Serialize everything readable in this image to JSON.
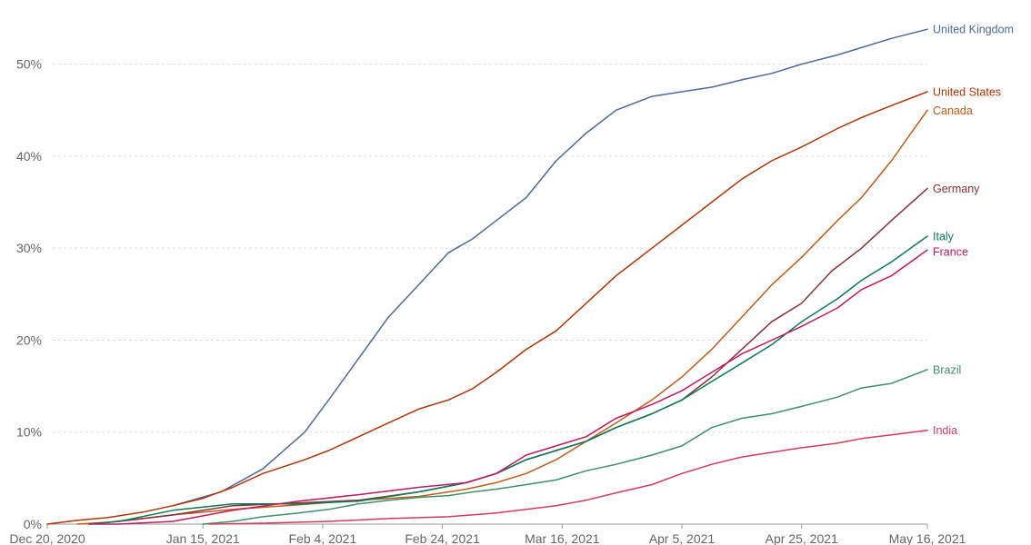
{
  "chart_data": {
    "type": "line",
    "title": "",
    "xlabel": "",
    "ylabel": "",
    "x_range": [
      "2020-12-20",
      "2021-05-16"
    ],
    "ylim": [
      0,
      55
    ],
    "grid": true,
    "legend": "inline labels at right end of lines",
    "x_ticks": [
      "Dec 20, 2020",
      "Jan 15, 2021",
      "Feb 4, 2021",
      "Feb 24, 2021",
      "Mar 16, 2021",
      "Apr 5, 2021",
      "Apr 25, 2021",
      "May 16, 2021"
    ],
    "x_tick_dates": [
      "2020-12-20",
      "2021-01-15",
      "2021-02-04",
      "2021-02-24",
      "2021-03-16",
      "2021-04-05",
      "2021-04-25",
      "2021-05-16"
    ],
    "y_ticks": [
      0,
      10,
      20,
      30,
      40,
      50
    ],
    "y_tick_labels": [
      "0%",
      "10%",
      "20%",
      "30%",
      "40%",
      "50%"
    ],
    "series": [
      {
        "name": "United Kingdom",
        "color": "#4c6a9c",
        "x": [
          "2021-01-10",
          "2021-01-18",
          "2021-01-25",
          "2021-02-01",
          "2021-02-05",
          "2021-02-10",
          "2021-02-15",
          "2021-02-20",
          "2021-02-25",
          "2021-03-01",
          "2021-03-05",
          "2021-03-10",
          "2021-03-15",
          "2021-03-20",
          "2021-03-25",
          "2021-03-31",
          "2021-04-05",
          "2021-04-10",
          "2021-04-15",
          "2021-04-20",
          "2021-04-25",
          "2021-05-01",
          "2021-05-05",
          "2021-05-10",
          "2021-05-16"
        ],
        "y": [
          2.0,
          3.5,
          6.0,
          10.0,
          13.5,
          18.0,
          22.5,
          26.0,
          29.5,
          31.0,
          33.0,
          35.5,
          39.5,
          42.5,
          45.0,
          46.5,
          47.0,
          47.5,
          48.3,
          49.0,
          50.0,
          51.0,
          51.8,
          52.8,
          53.8
        ]
      },
      {
        "name": "United States",
        "color": "#b13507",
        "x": [
          "2020-12-20",
          "2020-12-25",
          "2020-12-30",
          "2021-01-05",
          "2021-01-10",
          "2021-01-15",
          "2021-01-20",
          "2021-01-25",
          "2021-02-01",
          "2021-02-05",
          "2021-02-10",
          "2021-02-15",
          "2021-02-20",
          "2021-02-25",
          "2021-03-01",
          "2021-03-05",
          "2021-03-10",
          "2021-03-15",
          "2021-03-20",
          "2021-03-25",
          "2021-03-31",
          "2021-04-05",
          "2021-04-10",
          "2021-04-15",
          "2021-04-20",
          "2021-04-25",
          "2021-05-01",
          "2021-05-05",
          "2021-05-10",
          "2021-05-16"
        ],
        "y": [
          0.0,
          0.4,
          0.7,
          1.3,
          2.0,
          2.8,
          4.0,
          5.5,
          7.0,
          8.0,
          9.5,
          11.0,
          12.5,
          13.5,
          14.7,
          16.5,
          19.0,
          21.0,
          24.0,
          27.0,
          30.0,
          32.5,
          35.0,
          37.5,
          39.5,
          41.0,
          43.0,
          44.2,
          45.5,
          47.0
        ]
      },
      {
        "name": "Canada",
        "color": "#c15c17",
        "x": [
          "2020-12-25",
          "2020-12-30",
          "2021-01-05",
          "2021-01-10",
          "2021-01-20",
          "2021-01-31",
          "2021-02-10",
          "2021-02-20",
          "2021-02-28",
          "2021-03-05",
          "2021-03-10",
          "2021-03-15",
          "2021-03-20",
          "2021-03-25",
          "2021-03-31",
          "2021-04-05",
          "2021-04-10",
          "2021-04-15",
          "2021-04-20",
          "2021-04-25",
          "2021-05-01",
          "2021-05-05",
          "2021-05-10",
          "2021-05-16"
        ],
        "y": [
          0.0,
          0.2,
          0.6,
          1.0,
          1.6,
          2.1,
          2.6,
          3.0,
          3.8,
          4.5,
          5.5,
          7.0,
          9.0,
          11.0,
          13.5,
          16.0,
          19.0,
          22.5,
          26.0,
          29.0,
          33.0,
          35.5,
          39.5,
          45.0
        ]
      },
      {
        "name": "Germany",
        "color": "#883039",
        "x": [
          "2020-12-27",
          "2021-01-01",
          "2021-01-10",
          "2021-01-20",
          "2021-01-31",
          "2021-02-10",
          "2021-02-20",
          "2021-02-28",
          "2021-03-05",
          "2021-03-10",
          "2021-03-15",
          "2021-03-20",
          "2021-03-25",
          "2021-03-31",
          "2021-04-05",
          "2021-04-10",
          "2021-04-15",
          "2021-04-20",
          "2021-04-25",
          "2021-04-30",
          "2021-05-05",
          "2021-05-10",
          "2021-05-16"
        ],
        "y": [
          0.0,
          0.3,
          1.0,
          2.0,
          2.3,
          2.6,
          3.5,
          4.5,
          5.5,
          7.0,
          8.0,
          9.0,
          10.5,
          12.0,
          13.5,
          16.0,
          19.0,
          22.0,
          24.0,
          27.5,
          30.0,
          33.0,
          36.5
        ]
      },
      {
        "name": "Italy",
        "color": "#0b7b57",
        "x": [
          "2020-12-27",
          "2021-01-01",
          "2021-01-10",
          "2021-01-20",
          "2021-01-31",
          "2021-02-10",
          "2021-02-20",
          "2021-02-28",
          "2021-03-05",
          "2021-03-10",
          "2021-03-15",
          "2021-03-20",
          "2021-03-25",
          "2021-03-31",
          "2021-04-05",
          "2021-04-10",
          "2021-04-15",
          "2021-04-20",
          "2021-04-25",
          "2021-05-01",
          "2021-05-05",
          "2021-05-10",
          "2021-05-16"
        ],
        "y": [
          0.0,
          0.3,
          1.5,
          2.2,
          2.2,
          2.5,
          3.5,
          4.5,
          5.5,
          7.0,
          8.0,
          9.0,
          10.5,
          12.0,
          13.5,
          15.5,
          17.5,
          19.5,
          22.0,
          24.5,
          26.5,
          28.5,
          31.3
        ]
      },
      {
        "name": "France",
        "color": "#c0195e",
        "x": [
          "2020-12-27",
          "2021-01-01",
          "2021-01-10",
          "2021-01-20",
          "2021-01-31",
          "2021-02-10",
          "2021-02-20",
          "2021-02-28",
          "2021-03-05",
          "2021-03-10",
          "2021-03-15",
          "2021-03-20",
          "2021-03-25",
          "2021-03-31",
          "2021-04-05",
          "2021-04-10",
          "2021-04-15",
          "2021-04-20",
          "2021-04-25",
          "2021-05-01",
          "2021-05-05",
          "2021-05-10",
          "2021-05-16"
        ],
        "y": [
          0.0,
          0.0,
          0.3,
          1.5,
          2.5,
          3.2,
          4.0,
          4.5,
          5.5,
          7.5,
          8.5,
          9.5,
          11.5,
          13.0,
          14.5,
          16.5,
          18.5,
          20.0,
          21.5,
          23.5,
          25.5,
          27.0,
          29.8
        ]
      },
      {
        "name": "Brazil",
        "color": "#3f8f6c",
        "x": [
          "2021-01-15",
          "2021-01-20",
          "2021-01-25",
          "2021-01-31",
          "2021-02-05",
          "2021-02-10",
          "2021-02-15",
          "2021-02-20",
          "2021-02-25",
          "2021-03-01",
          "2021-03-05",
          "2021-03-10",
          "2021-03-15",
          "2021-03-20",
          "2021-03-25",
          "2021-03-31",
          "2021-04-05",
          "2021-04-10",
          "2021-04-15",
          "2021-04-20",
          "2021-04-25",
          "2021-05-01",
          "2021-05-05",
          "2021-05-10",
          "2021-05-16"
        ],
        "y": [
          0.0,
          0.3,
          0.8,
          1.2,
          1.6,
          2.2,
          2.6,
          2.9,
          3.1,
          3.5,
          3.8,
          4.3,
          4.8,
          5.8,
          6.5,
          7.5,
          8.5,
          10.5,
          11.5,
          12.0,
          12.8,
          13.8,
          14.8,
          15.3,
          16.8
        ]
      },
      {
        "name": "India",
        "color": "#d23b5e",
        "x": [
          "2021-01-16",
          "2021-01-25",
          "2021-02-05",
          "2021-02-15",
          "2021-02-25",
          "2021-03-05",
          "2021-03-10",
          "2021-03-15",
          "2021-03-20",
          "2021-03-25",
          "2021-03-31",
          "2021-04-05",
          "2021-04-10",
          "2021-04-15",
          "2021-04-20",
          "2021-04-25",
          "2021-05-01",
          "2021-05-05",
          "2021-05-10",
          "2021-05-16"
        ],
        "y": [
          0.0,
          0.1,
          0.3,
          0.6,
          0.8,
          1.2,
          1.6,
          2.0,
          2.6,
          3.4,
          4.3,
          5.5,
          6.5,
          7.3,
          7.8,
          8.3,
          8.8,
          9.3,
          9.7,
          10.2
        ]
      }
    ]
  }
}
